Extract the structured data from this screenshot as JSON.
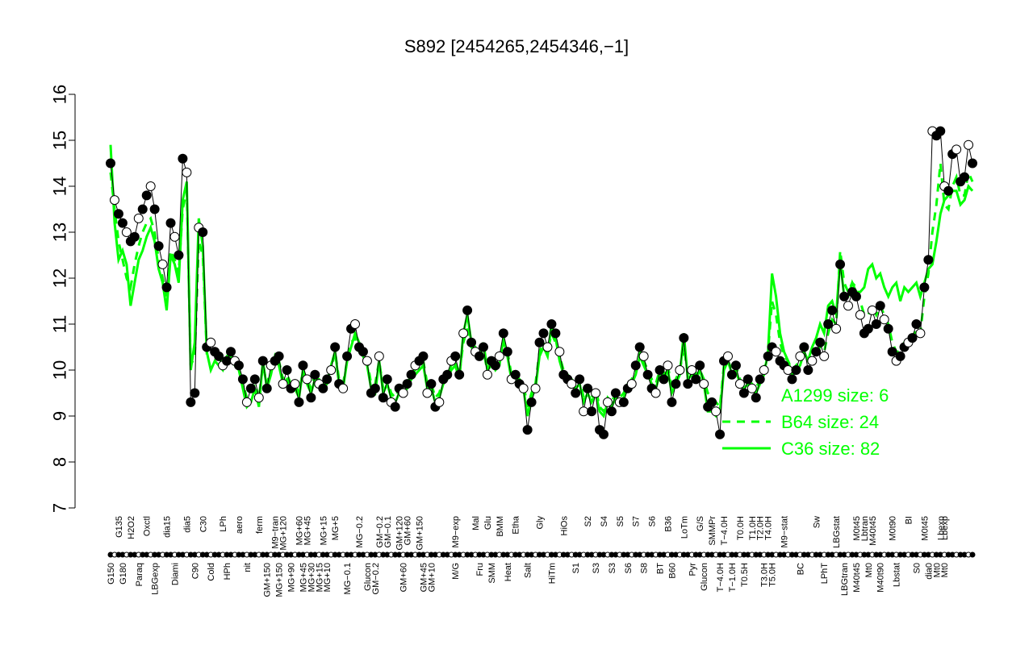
{
  "chart_data": {
    "type": "line",
    "title": "S892 [2454265,2454346,−1]",
    "xlabel": "",
    "ylabel": "",
    "ylim": [
      7,
      16
    ],
    "yticks": [
      7,
      8,
      9,
      10,
      11,
      12,
      13,
      14,
      15,
      16
    ],
    "grid": false,
    "legend_position": "bottom-right",
    "colors": {
      "main": "#000000",
      "b64": "#00ff00",
      "c36": "#00ff00",
      "axis": "#000000"
    },
    "series": [
      {
        "name": "",
        "values": [
          14.5,
          13.7,
          13.4,
          13.2,
          13.0,
          12.8,
          12.9,
          13.3,
          13.5,
          13.8,
          14.0,
          13.5,
          12.7,
          12.3,
          11.8,
          13.2,
          12.9,
          12.5,
          14.6,
          14.3,
          9.3,
          9.5,
          13.1,
          13.0,
          10.5,
          10.6,
          10.4,
          10.3,
          10.1,
          10.2,
          10.4,
          10.2,
          10.1,
          9.8,
          9.3,
          9.6,
          9.8,
          9.4,
          10.2,
          9.6,
          10.1,
          10.2,
          10.3,
          9.7,
          10.0,
          9.6,
          9.7,
          9.3,
          10.1,
          9.8,
          9.4,
          9.9,
          9.7,
          9.6,
          9.8,
          10.0,
          10.5,
          9.7,
          9.6,
          10.3,
          10.9,
          11.0,
          10.5,
          10.4,
          10.2,
          9.5,
          9.6,
          10.3,
          9.4,
          9.8,
          9.3,
          9.2,
          9.6,
          9.5,
          9.7,
          9.9,
          10.1,
          10.2,
          10.3,
          9.5,
          9.7,
          9.2,
          9.3,
          9.8,
          9.9,
          10.2,
          10.3,
          9.9,
          10.8,
          11.3,
          10.6,
          10.4,
          10.3,
          10.5,
          9.9,
          10.2,
          10.1,
          10.3,
          10.8,
          10.4,
          9.8,
          9.9,
          9.7,
          9.6,
          8.7,
          9.3,
          9.6,
          10.6,
          10.8,
          10.5,
          11.0,
          10.8,
          10.4,
          9.9,
          9.8,
          9.7,
          9.5,
          9.8,
          9.1,
          9.6,
          9.1,
          9.5,
          8.7,
          8.6,
          9.3,
          9.1,
          9.5,
          9.3,
          9.3,
          9.6,
          9.7,
          10.1,
          10.5,
          10.3,
          9.9,
          9.6,
          9.5,
          10.0,
          9.8,
          10.1,
          9.3,
          9.7,
          10.0,
          10.7,
          9.7,
          10.0,
          9.8,
          10.1,
          9.7,
          9.2,
          9.3,
          9.1,
          8.6,
          10.2,
          10.3,
          9.9,
          10.1,
          9.7,
          9.5,
          9.8,
          9.6,
          9.4,
          9.8,
          10.0,
          10.3,
          10.5,
          10.4,
          10.2,
          10.1,
          10.0,
          9.8,
          10.0,
          10.3,
          10.5,
          10.0,
          10.2,
          10.4,
          10.6,
          10.3,
          11.0,
          11.3,
          10.9,
          12.3,
          11.6,
          11.4,
          11.7,
          11.6,
          11.2,
          10.8,
          10.9,
          11.3,
          11.0,
          11.4,
          11.1,
          10.9,
          10.4,
          10.2,
          10.3,
          10.5,
          10.6,
          10.7,
          11.0,
          10.8,
          11.8,
          12.4,
          15.2,
          15.1,
          15.2,
          14.0,
          13.9,
          14.7,
          14.8,
          14.1,
          14.2,
          14.9,
          14.5
        ]
      },
      {
        "name": "B64 size: 24",
        "values": [
          14.3,
          13.5,
          12.8,
          12.4,
          12.0,
          11.8,
          12.3,
          12.7,
          13.0,
          13.2,
          13.3,
          13.0,
          12.4,
          12.0,
          11.6,
          12.6,
          12.4,
          12.1,
          13.5,
          13.9,
          10.1,
          10.3,
          12.8,
          12.5,
          10.4,
          10.5,
          10.3,
          10.3,
          10.1,
          10.2,
          10.3,
          10.2,
          10.1,
          9.7,
          9.4,
          9.5,
          9.7,
          9.4,
          10.1,
          9.7,
          10.0,
          10.2,
          10.2,
          9.8,
          9.9,
          9.7,
          9.7,
          9.5,
          10.0,
          9.8,
          9.6,
          9.9,
          9.8,
          9.7,
          9.8,
          10.0,
          10.4,
          9.8,
          9.7,
          10.2,
          10.6,
          10.7,
          10.4,
          10.3,
          10.2,
          9.7,
          9.7,
          10.2,
          9.6,
          9.8,
          9.5,
          9.4,
          9.6,
          9.6,
          9.7,
          9.9,
          10.0,
          10.1,
          10.2,
          9.7,
          9.7,
          9.4,
          9.5,
          9.8,
          9.9,
          10.1,
          10.2,
          9.9,
          10.6,
          10.9,
          10.5,
          10.4,
          10.3,
          10.4,
          10.0,
          10.1,
          10.1,
          10.2,
          10.6,
          10.4,
          9.9,
          9.9,
          9.8,
          9.7,
          9.2,
          9.5,
          9.7,
          10.4,
          10.6,
          10.4,
          10.8,
          10.6,
          10.3,
          10.0,
          9.9,
          9.8,
          9.7,
          9.8,
          9.4,
          9.6,
          9.4,
          9.6,
          9.2,
          9.1,
          9.4,
          9.3,
          9.5,
          9.4,
          9.5,
          9.7,
          9.8,
          10.0,
          10.4,
          10.2,
          10.0,
          9.8,
          9.7,
          10.0,
          9.9,
          10.1,
          9.6,
          9.8,
          10.0,
          10.5,
          9.9,
          10.0,
          9.9,
          10.0,
          9.8,
          9.5,
          9.4,
          9.3,
          9.2,
          10.1,
          10.2,
          10.0,
          10.1,
          9.8,
          9.7,
          9.8,
          9.7,
          9.6,
          9.8,
          10.0,
          10.4,
          11.5,
          11.2,
          10.6,
          10.3,
          10.2,
          10.0,
          10.1,
          10.2,
          10.4,
          10.2,
          10.3,
          10.4,
          10.5,
          10.4,
          10.8,
          11.1,
          11.0,
          12.6,
          11.9,
          11.7,
          11.9,
          11.8,
          11.5,
          11.2,
          11.2,
          11.4,
          11.2,
          11.4,
          11.2,
          11.0,
          10.6,
          10.4,
          10.4,
          10.6,
          10.6,
          10.7,
          10.9,
          10.8,
          11.6,
          12.1,
          13.0,
          13.6,
          14.5,
          13.6,
          13.5,
          14.0,
          14.2,
          13.8,
          13.8,
          14.3,
          14.1
        ]
      },
      {
        "name": "C36 size: 82",
        "values": [
          14.9,
          13.2,
          12.4,
          12.6,
          12.3,
          11.4,
          11.9,
          12.4,
          12.6,
          12.9,
          13.1,
          12.8,
          12.2,
          11.9,
          11.3,
          12.5,
          12.3,
          11.9,
          13.7,
          14.1,
          10.0,
          10.6,
          13.3,
          12.7,
          10.4,
          10.0,
          10.2,
          10.1,
          10.0,
          10.3,
          10.4,
          10.1,
          10.0,
          9.6,
          9.2,
          9.3,
          9.6,
          9.2,
          10.2,
          9.6,
          9.9,
          10.3,
          10.1,
          9.7,
          9.8,
          9.6,
          9.6,
          9.4,
          10.0,
          9.7,
          9.5,
          9.8,
          9.8,
          9.6,
          9.7,
          10.1,
          10.4,
          9.7,
          9.6,
          10.2,
          10.5,
          10.8,
          10.6,
          10.3,
          10.1,
          9.6,
          9.5,
          10.2,
          9.5,
          9.7,
          9.4,
          9.3,
          9.5,
          9.5,
          9.6,
          9.8,
          9.9,
          10.0,
          10.1,
          9.6,
          9.6,
          9.3,
          9.4,
          9.7,
          9.8,
          10.0,
          10.1,
          9.8,
          10.8,
          11.2,
          10.6,
          10.5,
          10.3,
          10.6,
          10.0,
          10.2,
          10.0,
          10.1,
          10.7,
          10.3,
          9.8,
          9.8,
          9.7,
          9.6,
          9.0,
          9.4,
          9.6,
          10.3,
          10.5,
          10.3,
          11.0,
          10.7,
          10.2,
          9.9,
          9.8,
          9.7,
          9.6,
          9.7,
          9.3,
          9.5,
          9.3,
          9.5,
          9.1,
          9.0,
          9.3,
          9.2,
          9.4,
          9.3,
          9.4,
          9.6,
          9.7,
          9.9,
          10.3,
          10.1,
          9.9,
          9.7,
          9.6,
          9.9,
          9.8,
          10.0,
          9.5,
          9.7,
          9.9,
          10.8,
          9.8,
          9.9,
          9.8,
          10.0,
          9.7,
          9.1,
          9.1,
          9.0,
          9.1,
          10.0,
          10.2,
          9.9,
          10.0,
          9.7,
          9.6,
          9.7,
          9.6,
          9.5,
          9.7,
          9.9,
          10.4,
          12.1,
          11.6,
          10.8,
          10.4,
          10.2,
          9.9,
          10.0,
          10.1,
          10.4,
          10.2,
          10.5,
          10.7,
          11.0,
          10.8,
          11.4,
          11.5,
          11.2,
          12.4,
          11.6,
          11.6,
          11.9,
          11.7,
          11.7,
          11.8,
          12.2,
          12.3,
          12.0,
          12.1,
          11.8,
          11.6,
          11.8,
          11.9,
          11.5,
          11.8,
          11.7,
          11.8,
          11.9,
          11.6,
          11.9,
          12.2,
          12.3,
          12.8,
          13.4,
          13.7,
          13.8,
          13.9,
          13.9,
          13.6,
          13.7,
          14.0,
          13.9
        ]
      }
    ],
    "legend": [
      "A1299 size: 6",
      "B64 size: 24",
      "C36 size: 82"
    ],
    "top_labels": [
      {
        "text": "G135",
        "i": 2
      },
      {
        "text": "H2O2",
        "i": 5
      },
      {
        "text": "Oxctl",
        "i": 9
      },
      {
        "text": "dia15",
        "i": 14
      },
      {
        "text": "dia5",
        "i": 19
      },
      {
        "text": "C30",
        "i": 23
      },
      {
        "text": "LPh",
        "i": 28
      },
      {
        "text": "aero",
        "i": 32
      },
      {
        "text": "ferm",
        "i": 37
      },
      {
        "text": "M9−tran",
        "i": 41
      },
      {
        "text": "MG+120",
        "i": 43
      },
      {
        "text": "MG+60",
        "i": 47
      },
      {
        "text": "MG+45",
        "i": 49
      },
      {
        "text": "MG+15",
        "i": 53
      },
      {
        "text": "MG+5",
        "i": 56
      },
      {
        "text": "MG−0.2",
        "i": 62
      },
      {
        "text": "GM−0.2",
        "i": 67
      },
      {
        "text": "GM−0.1",
        "i": 69
      },
      {
        "text": "GM+120",
        "i": 72
      },
      {
        "text": "GM+60",
        "i": 74
      },
      {
        "text": "GM+150",
        "i": 77
      },
      {
        "text": "M9−exp",
        "i": 86
      },
      {
        "text": "Mal",
        "i": 91
      },
      {
        "text": "Glu",
        "i": 94
      },
      {
        "text": "BMM",
        "i": 97
      },
      {
        "text": "Etha",
        "i": 101
      },
      {
        "text": "Gly",
        "i": 107
      },
      {
        "text": "HiOs",
        "i": 113
      },
      {
        "text": "S2",
        "i": 119
      },
      {
        "text": "S4",
        "i": 123
      },
      {
        "text": "S5",
        "i": 127
      },
      {
        "text": "S7",
        "i": 131
      },
      {
        "text": "S6",
        "i": 135
      },
      {
        "text": "B36",
        "i": 139
      },
      {
        "text": "LoTm",
        "i": 143
      },
      {
        "text": "G/S",
        "i": 147
      },
      {
        "text": "SMMPr",
        "i": 150
      },
      {
        "text": "T−4.0H",
        "i": 153
      },
      {
        "text": "T0.0H",
        "i": 157
      },
      {
        "text": "T1.0H",
        "i": 160
      },
      {
        "text": "T2.0H",
        "i": 162
      },
      {
        "text": "T4.0H",
        "i": 164
      },
      {
        "text": "M9−stat",
        "i": 168
      },
      {
        "text": "Sw",
        "i": 176
      },
      {
        "text": "LBGstat",
        "i": 181
      },
      {
        "text": "M0t45",
        "i": 186
      },
      {
        "text": "Lbtran",
        "i": 188
      },
      {
        "text": "M40t45",
        "i": 190
      },
      {
        "text": "M0t90",
        "i": 195
      },
      {
        "text": "BI",
        "i": 199
      },
      {
        "text": "M0t45",
        "i": 203
      },
      {
        "text": "Lbexp",
        "i": 207
      },
      {
        "text": "Lbexp",
        "i": 208
      }
    ],
    "bottom_labels": [
      {
        "text": "G150",
        "i": 0
      },
      {
        "text": "G180",
        "i": 3
      },
      {
        "text": "Paraq",
        "i": 7
      },
      {
        "text": "LBGexp",
        "i": 11
      },
      {
        "text": "Diami",
        "i": 16
      },
      {
        "text": "C90",
        "i": 21
      },
      {
        "text": "Cold",
        "i": 25
      },
      {
        "text": "HPh",
        "i": 29
      },
      {
        "text": "nit",
        "i": 34
      },
      {
        "text": "GM+150",
        "i": 39
      },
      {
        "text": "MG+150",
        "i": 42
      },
      {
        "text": "MG+90",
        "i": 45
      },
      {
        "text": "MG+45",
        "i": 48
      },
      {
        "text": "MG+30",
        "i": 50
      },
      {
        "text": "MG+15",
        "i": 52
      },
      {
        "text": "MG+10",
        "i": 54
      },
      {
        "text": "MG−0.1",
        "i": 59
      },
      {
        "text": "Glucon",
        "i": 64
      },
      {
        "text": "GM−0.2",
        "i": 66
      },
      {
        "text": "GM+60",
        "i": 73
      },
      {
        "text": "GM+45",
        "i": 78
      },
      {
        "text": "GM+10",
        "i": 80
      },
      {
        "text": "M/G",
        "i": 86
      },
      {
        "text": "Fru",
        "i": 92
      },
      {
        "text": "SMM",
        "i": 95
      },
      {
        "text": "Heat",
        "i": 99
      },
      {
        "text": "Salt",
        "i": 104
      },
      {
        "text": "HiTm",
        "i": 110
      },
      {
        "text": "S1",
        "i": 116
      },
      {
        "text": "S3",
        "i": 121
      },
      {
        "text": "S3",
        "i": 125
      },
      {
        "text": "S6",
        "i": 129
      },
      {
        "text": "S8",
        "i": 133
      },
      {
        "text": "BT",
        "i": 137
      },
      {
        "text": "B60",
        "i": 140
      },
      {
        "text": "Pyr",
        "i": 145
      },
      {
        "text": "Glucon",
        "i": 148
      },
      {
        "text": "T−4.0H",
        "i": 152
      },
      {
        "text": "T−1.0H",
        "i": 155
      },
      {
        "text": "T0.5H",
        "i": 158
      },
      {
        "text": "T3.0H",
        "i": 163
      },
      {
        "text": "T5.0H",
        "i": 165
      },
      {
        "text": "BC",
        "i": 172
      },
      {
        "text": "LPhT",
        "i": 178
      },
      {
        "text": "LBGtran",
        "i": 183
      },
      {
        "text": "M40t45",
        "i": 186
      },
      {
        "text": "Mt0",
        "i": 189
      },
      {
        "text": "M40t90",
        "i": 192
      },
      {
        "text": "Lbstat",
        "i": 196
      },
      {
        "text": "S0",
        "i": 201
      },
      {
        "text": "dia0",
        "i": 204
      },
      {
        "text": "Mt0",
        "i": 206
      },
      {
        "text": "Mt0",
        "i": 208
      }
    ]
  }
}
